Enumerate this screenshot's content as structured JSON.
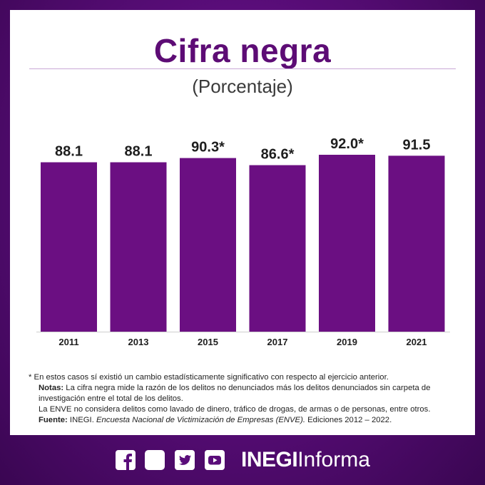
{
  "title": "Cifra negra",
  "subtitle": "(Porcentaje)",
  "chart_data": {
    "type": "bar",
    "title": "Cifra negra",
    "subtitle": "(Porcentaje)",
    "categories": [
      "2011",
      "2013",
      "2015",
      "2017",
      "2019",
      "2021"
    ],
    "values": [
      88.1,
      88.1,
      90.3,
      86.6,
      92.0,
      91.5
    ],
    "data_labels": [
      "88.1",
      "88.1",
      "90.3*",
      "86.6*",
      "92.0*",
      "91.5"
    ],
    "xlabel": "",
    "ylabel": "",
    "ylim": [
      0,
      92.0
    ],
    "grid": false,
    "legend": "none",
    "bar_color": "#6b0f82"
  },
  "notes": {
    "asterisk": "* En estos casos sí existió un cambio estadísticamente significativo con respecto al ejercicio anterior.",
    "notas_label": "Notas:",
    "notas_text": " La cifra negra mide la razón de los delitos no denunciados más los delitos denunciados sin carpeta de investigación entre el total de los delitos.",
    "enve_text": "La ENVE no considera delitos como lavado de dinero, tráfico de drogas, de armas o de personas, entre otros.",
    "fuente_label": "Fuente:",
    "fuente_org": " INEGI. ",
    "fuente_survey": "Encuesta Nacional de Victimización de Empresas (ENVE).",
    "fuente_editions": " Ediciones 2012 – 2022."
  },
  "footer": {
    "social_icons": [
      "facebook-icon",
      "instagram-icon",
      "twitter-icon",
      "youtube-icon"
    ],
    "brand_bold": "INEGI",
    "brand_regular": "Informa"
  },
  "colors": {
    "title": "#5d0c75",
    "bar": "#6b0f82",
    "background": "#5a0d7a"
  }
}
